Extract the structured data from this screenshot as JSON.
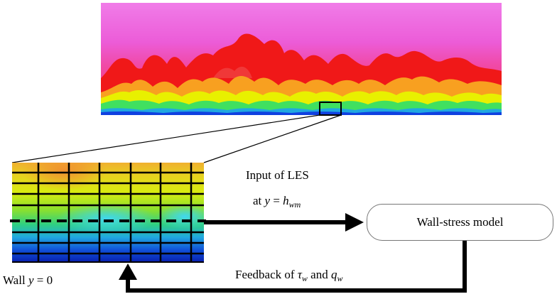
{
  "labels": {
    "input_line1": "Input of LES",
    "input_at": "at",
    "input_y": "y",
    "input_eq": " = ",
    "input_h": "h",
    "input_h_sub": "wm",
    "wall_text": "Wall",
    "wall_y": "y",
    "wall_eq": " = 0",
    "feedback_text": "Feedback of",
    "feedback_tau": "τ",
    "feedback_tau_sub": "w",
    "feedback_and": " and ",
    "feedback_q": "q",
    "feedback_q_sub": "w"
  },
  "model_box": {
    "label": "Wall-stress model"
  },
  "colors": {
    "background": "#ffffff",
    "arrow": "#000000",
    "box_border": "#777777",
    "contour_magenta": "#e860e0",
    "contour_pink": "#f04090",
    "contour_red": "#f01818",
    "contour_orange": "#f8a020",
    "contour_yellow": "#e8f000",
    "contour_green": "#40e060",
    "contour_blue": "#1040e0"
  }
}
